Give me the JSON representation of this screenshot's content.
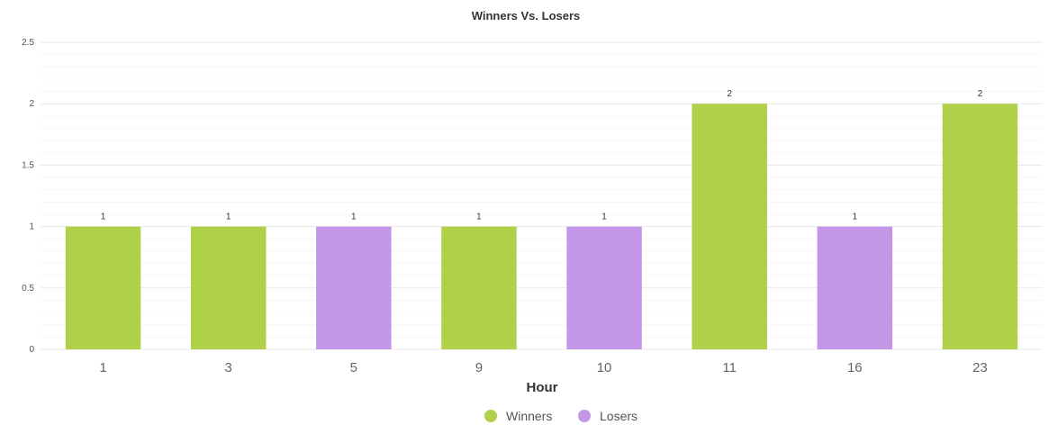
{
  "chart_data": {
    "type": "bar",
    "title": "Winners Vs. Losers",
    "xlabel": "Hour",
    "ylabel": "",
    "ylim": [
      0,
      2.5
    ],
    "yticks": [
      "0",
      "0.5",
      "1",
      "1.5",
      "2",
      "2.5"
    ],
    "categories": [
      "1",
      "3",
      "5",
      "9",
      "10",
      "11",
      "16",
      "23"
    ],
    "values": [
      1,
      1,
      1,
      1,
      1,
      2,
      1,
      2
    ],
    "data_labels": [
      "1",
      "1",
      "1",
      "1",
      "1",
      "2",
      "1",
      "2"
    ],
    "bar_series": [
      "Winners",
      "Winners",
      "Losers",
      "Winners",
      "Losers",
      "Winners",
      "Losers",
      "Winners"
    ],
    "series": [
      {
        "name": "Winners",
        "color": "#b0d04a"
      },
      {
        "name": "Losers",
        "color": "#c396e8"
      }
    ],
    "grid": true,
    "legend": "bottom-center"
  }
}
